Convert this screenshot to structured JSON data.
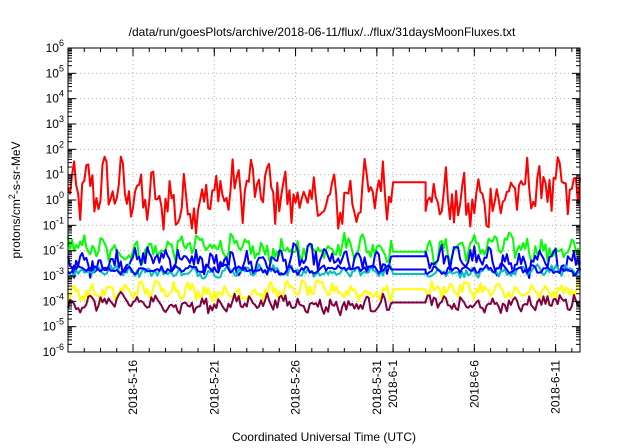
{
  "chart_data": {
    "type": "line",
    "title": "/data/run/goesPlots/archive/2018-06-11/flux/../flux/31daysMoonFluxes.txt",
    "xlabel": "Coordinated Universal Time (UTC)",
    "ylabel": "protons/cm²-s-sr-MeV",
    "yscale": "log",
    "ylim": [
      1e-06,
      1000000.0
    ],
    "xlim": [
      "2018-05-12",
      "2018-06-12T12:00"
    ],
    "grid": true,
    "legend": "none",
    "y_ticks": [
      {
        "base": "10",
        "exp": "6"
      },
      {
        "base": "10",
        "exp": "5"
      },
      {
        "base": "10",
        "exp": "4"
      },
      {
        "base": "10",
        "exp": "3"
      },
      {
        "base": "10",
        "exp": "2"
      },
      {
        "base": "10",
        "exp": "1"
      },
      {
        "base": "10",
        "exp": "0"
      },
      {
        "base": "10",
        "exp": "-1"
      },
      {
        "base": "10",
        "exp": "-2"
      },
      {
        "base": "10",
        "exp": "-3"
      },
      {
        "base": "10",
        "exp": "-4"
      },
      {
        "base": "10",
        "exp": "-5"
      },
      {
        "base": "10",
        "exp": "-6"
      }
    ],
    "x_ticks": [
      {
        "label": "2018-5-16",
        "date": "2018-05-16"
      },
      {
        "label": "2018-5-21",
        "date": "2018-05-21"
      },
      {
        "label": "2018-5-26",
        "date": "2018-05-26"
      },
      {
        "label": "2018-5-31",
        "date": "2018-05-31"
      },
      {
        "label": "2018-6-1",
        "date": "2018-06-01"
      },
      {
        "label": "2018-6-6",
        "date": "2018-06-06"
      },
      {
        "label": "2018-6-11",
        "date": "2018-06-11"
      }
    ],
    "data_gap": {
      "start": "2018-06-01",
      "end": "2018-06-03"
    },
    "series": [
      {
        "color": "#ff0000",
        "level": 1.5,
        "spread": 1.1,
        "gap_value": 5
      },
      {
        "color": "#00ff00",
        "level": 0.012,
        "spread": 0.45,
        "gap_value": 0.009
      },
      {
        "color": "#0000ff",
        "level": 0.004,
        "spread": 0.45,
        "gap_value": 0.006
      },
      {
        "color": "#00c0c0",
        "level": 0.0015,
        "spread": 0.2,
        "gap_value": 0.0012
      },
      {
        "color": "#0000ff",
        "level": 0.0018,
        "spread": 0.15,
        "gap_value": 0.0018
      },
      {
        "color": "#ffff00",
        "level": 0.00025,
        "spread": 0.3,
        "gap_value": 0.0003
      },
      {
        "color": "#800040",
        "level": 8e-05,
        "spread": 0.3,
        "gap_value": 9e-05
      }
    ]
  }
}
